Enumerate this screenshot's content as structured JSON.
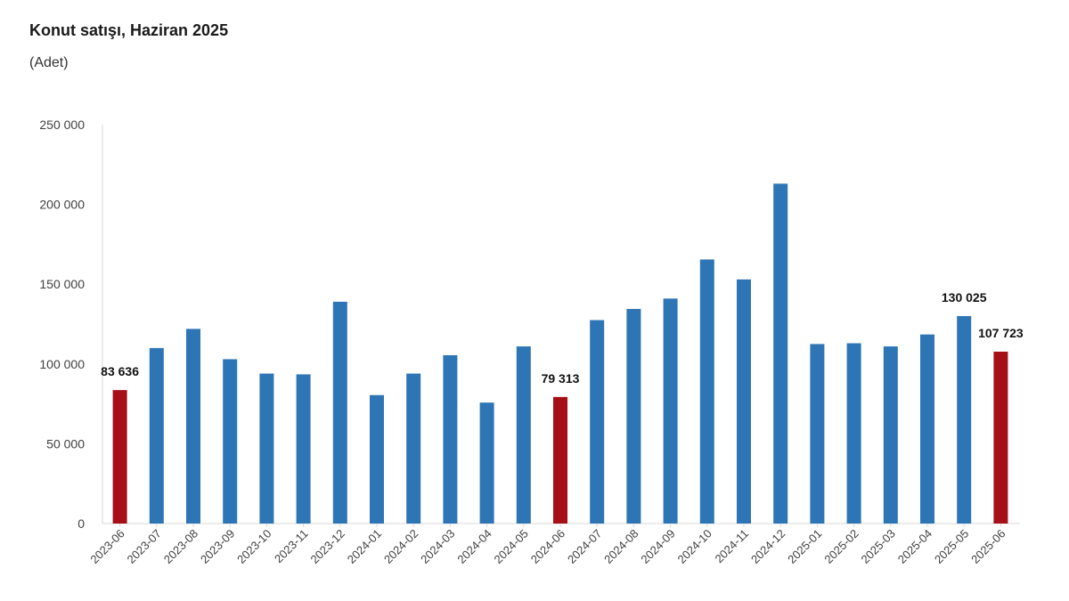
{
  "title": "Konut satışı, Haziran 2025",
  "subtitle": "(Adet)",
  "colors": {
    "normal": "#2E75B6",
    "highlight": "#A50F15",
    "axis": "#D9D9D9"
  },
  "chart_data": {
    "type": "bar",
    "categories": [
      "2023-06",
      "2023-07",
      "2023-08",
      "2023-09",
      "2023-10",
      "2023-11",
      "2023-12",
      "2024-01",
      "2024-02",
      "2024-03",
      "2024-04",
      "2024-05",
      "2024-06",
      "2024-07",
      "2024-08",
      "2024-09",
      "2024-10",
      "2024-11",
      "2024-12",
      "2025-01",
      "2025-02",
      "2025-03",
      "2025-04",
      "2025-05",
      "2025-06"
    ],
    "values": [
      83636,
      110000,
      122000,
      103000,
      94000,
      93500,
      139000,
      80500,
      94000,
      105500,
      75800,
      111000,
      79313,
      127500,
      134500,
      141000,
      165500,
      153000,
      213000,
      112500,
      113000,
      111000,
      118500,
      130025,
      107723
    ],
    "highlighted": [
      "2023-06",
      "2024-06",
      "2025-06"
    ],
    "data_labels": [
      {
        "category": "2023-06",
        "text": "83 636"
      },
      {
        "category": "2024-06",
        "text": "79 313"
      },
      {
        "category": "2025-05",
        "text": "130 025"
      },
      {
        "category": "2025-06",
        "text": "107 723"
      }
    ],
    "yticks": [
      "0",
      "50 000",
      "100 000",
      "150 000",
      "200 000",
      "250 000"
    ],
    "ylim": [
      0,
      250000
    ],
    "xlabel": "",
    "ylabel": "",
    "grid": false,
    "legend": "none"
  }
}
